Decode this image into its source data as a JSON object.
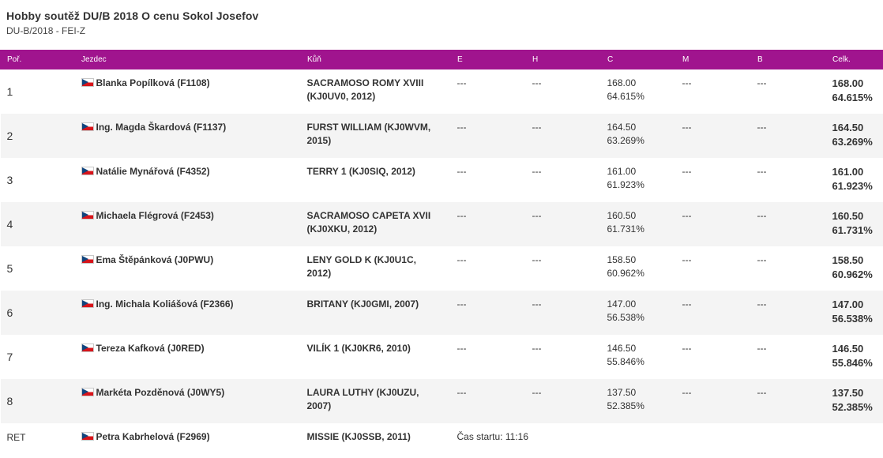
{
  "title": "Hobby soutěž DU/B 2018 O cenu Sokol Josefov",
  "subtitle": "DU-B/2018 - FEI-Z",
  "columns": {
    "rank": "Poř.",
    "rider": "Jezdec",
    "horse": "Kůň",
    "e": "E",
    "h": "H",
    "c": "C",
    "m": "M",
    "b": "B",
    "total": "Celk."
  },
  "colors": {
    "header_bg": "#a0148e",
    "row_alt": "#f4f4f4"
  },
  "rows": [
    {
      "rank": "1",
      "rider": "Blanka Popílková (F1108)",
      "horse": "SACRAMOSO ROMY XVIII (KJ0UV0, 2012)",
      "e": "---",
      "h": "---",
      "c_score": "168.00",
      "c_pct": "64.615%",
      "m": "---",
      "b": "---",
      "total_score": "168.00",
      "total_pct": "64.615%"
    },
    {
      "rank": "2",
      "rider": "Ing. Magda Škardová (F1137)",
      "horse": "FURST WILLIAM (KJ0WVM, 2015)",
      "e": "---",
      "h": "---",
      "c_score": "164.50",
      "c_pct": "63.269%",
      "m": "---",
      "b": "---",
      "total_score": "164.50",
      "total_pct": "63.269%"
    },
    {
      "rank": "3",
      "rider": "Natálie Mynářová (F4352)",
      "horse": "TERRY 1 (KJ0SIQ, 2012)",
      "e": "---",
      "h": "---",
      "c_score": "161.00",
      "c_pct": "61.923%",
      "m": "---",
      "b": "---",
      "total_score": "161.00",
      "total_pct": "61.923%"
    },
    {
      "rank": "4",
      "rider": "Michaela Flégrová (F2453)",
      "horse": "SACRAMOSO CAPETA XVII (KJ0XKU, 2012)",
      "e": "---",
      "h": "---",
      "c_score": "160.50",
      "c_pct": "61.731%",
      "m": "---",
      "b": "---",
      "total_score": "160.50",
      "total_pct": "61.731%"
    },
    {
      "rank": "5",
      "rider": "Ema Štěpánková (J0PWU)",
      "horse": "LENY GOLD K (KJ0U1C, 2012)",
      "e": "---",
      "h": "---",
      "c_score": "158.50",
      "c_pct": "60.962%",
      "m": "---",
      "b": "---",
      "total_score": "158.50",
      "total_pct": "60.962%"
    },
    {
      "rank": "6",
      "rider": "Ing. Michala Koliášová (F2366)",
      "horse": "BRITANY (KJ0GMI, 2007)",
      "e": "---",
      "h": "---",
      "c_score": "147.00",
      "c_pct": "56.538%",
      "m": "---",
      "b": "---",
      "total_score": "147.00",
      "total_pct": "56.538%"
    },
    {
      "rank": "7",
      "rider": "Tereza Kafková (J0RED)",
      "horse": "VILÍK 1 (KJ0KR6, 2010)",
      "e": "---",
      "h": "---",
      "c_score": "146.50",
      "c_pct": "55.846%",
      "m": "---",
      "b": "---",
      "total_score": "146.50",
      "total_pct": "55.846%"
    },
    {
      "rank": "8",
      "rider": "Markéta Pozděnová (J0WY5)",
      "horse": "LAURA LUTHY (KJ0UZU, 2007)",
      "e": "---",
      "h": "---",
      "c_score": "137.50",
      "c_pct": "52.385%",
      "m": "---",
      "b": "---",
      "total_score": "137.50",
      "total_pct": "52.385%"
    }
  ],
  "ret_row": {
    "rank": "RET",
    "rider": "Petra Kabrhelová (F2969)",
    "horse": "MISSIE (KJ0SSB, 2011)",
    "start_time": "Čas startu: 11:16"
  }
}
